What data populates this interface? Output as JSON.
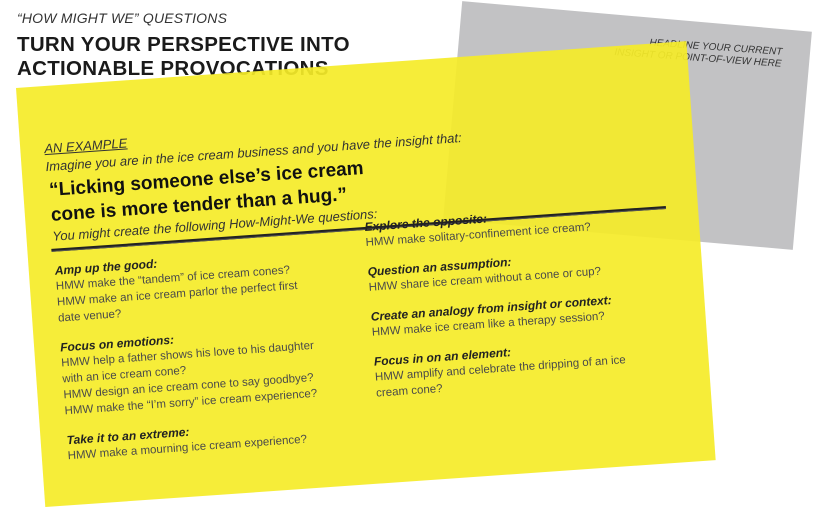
{
  "header": {
    "kicker": "“HOW MIGHT WE” QUESTIONS",
    "title_line1": "TURN YOUR PERSPECTIVE INTO",
    "title_line2": "ACTIONABLE PROVOCATIONS"
  },
  "gray_card": {
    "line1": "HEADLINE YOUR CURRENT",
    "line2": "INSIGHT OR POINT-OF-VIEW HERE"
  },
  "example": {
    "label": "AN EXAMPLE",
    "intro": "Imagine you are in the ice cream business and you have the insight that:",
    "quote_line1": "“Licking someone else’s ice cream",
    "quote_line2": "cone is more tender than a hug.”",
    "lead": "You might create the following How-Might-We questions:"
  },
  "left_column": [
    {
      "heading": "Amp up the good:",
      "lines": [
        "HMW make the “tandem” of ice cream cones?",
        "HMW make an ice cream parlor the perfect first",
        "date venue?"
      ]
    },
    {
      "heading": "Focus on emotions:",
      "lines": [
        "HMW help a father shows his love to his daughter",
        "with an ice cream cone?",
        "HMW design an ice cream cone to say goodbye?",
        "HMW make the “I’m sorry” ice cream experience?"
      ]
    },
    {
      "heading": "Take it to an extreme:",
      "lines": [
        "HMW make a mourning ice cream experience?"
      ]
    }
  ],
  "right_column": [
    {
      "heading": "Explore the opposite:",
      "lines": [
        "HMW make solitary-confinement ice cream?"
      ]
    },
    {
      "heading": "Question an assumption:",
      "lines": [
        "HMW share ice cream without a cone or cup?"
      ]
    },
    {
      "heading": "Create an analogy from insight or context:",
      "lines": [
        "HMW make ice cream like a therapy session?"
      ]
    },
    {
      "heading": "Focus in on an element:",
      "lines": [
        "HMW amplify and celebrate the dripping of an ice",
        "cream cone?"
      ]
    }
  ]
}
